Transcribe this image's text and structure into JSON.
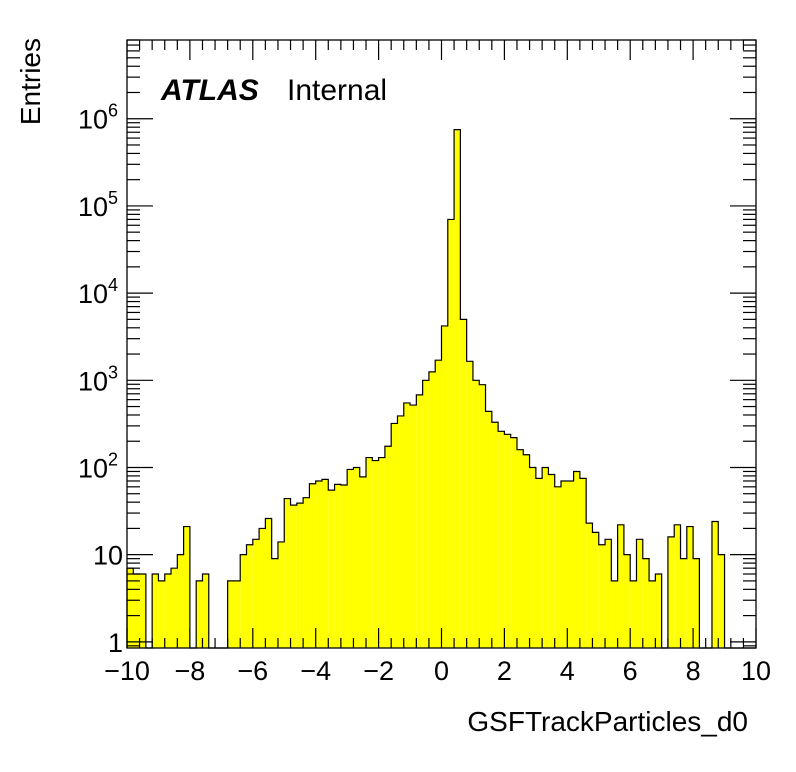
{
  "chart_data": {
    "type": "bar",
    "title": "",
    "xlabel": "GSFTrackParticles_d0",
    "ylabel": "Entries",
    "annotation": {
      "experiment": "ATLAS",
      "status": "Internal"
    },
    "xlim": [
      -10,
      10
    ],
    "ylim": [
      0.85,
      8000000
    ],
    "yscale": "log",
    "grid": false,
    "legend": "none",
    "bar_color": "#ffff00",
    "edge_color": "#000000",
    "x_ticks": [
      -10,
      -8,
      -6,
      -4,
      -2,
      0,
      2,
      4,
      6,
      8,
      10
    ],
    "x_tick_labels": [
      "−10",
      "−8",
      "−6",
      "−4",
      "−2",
      "0",
      "2",
      "4",
      "6",
      "8",
      "10"
    ],
    "y_ticks": [
      1,
      10,
      100,
      1000,
      10000,
      100000,
      1000000
    ],
    "y_tick_labels": [
      {
        "base": "1",
        "exp": ""
      },
      {
        "base": "10",
        "exp": ""
      },
      {
        "base": "10",
        "exp": "2"
      },
      {
        "base": "10",
        "exp": "3"
      },
      {
        "base": "10",
        "exp": "4"
      },
      {
        "base": "10",
        "exp": "5"
      },
      {
        "base": "10",
        "exp": "6"
      }
    ],
    "bin_low": -10,
    "bin_width": 0.2,
    "values": [
      7,
      6,
      6,
      0,
      6,
      5,
      6,
      7,
      10,
      21,
      0,
      5,
      6,
      0,
      0,
      0,
      5,
      5,
      10,
      13,
      15,
      20,
      26,
      9,
      14,
      44,
      37,
      39,
      45,
      65,
      70,
      73,
      55,
      64,
      63,
      95,
      100,
      78,
      130,
      120,
      130,
      175,
      320,
      390,
      550,
      520,
      680,
      1000,
      1250,
      1700,
      4200,
      70000,
      750000,
      5000,
      1650,
      1000,
      890,
      440,
      330,
      260,
      240,
      220,
      160,
      140,
      100,
      75,
      100,
      83,
      60,
      70,
      70,
      90,
      75,
      23,
      18,
      13,
      15,
      5,
      22,
      10,
      5,
      15,
      9,
      5,
      6,
      0,
      16,
      22,
      9,
      21,
      9,
      0,
      0,
      24,
      10,
      0,
      0,
      0,
      0,
      0
    ]
  }
}
